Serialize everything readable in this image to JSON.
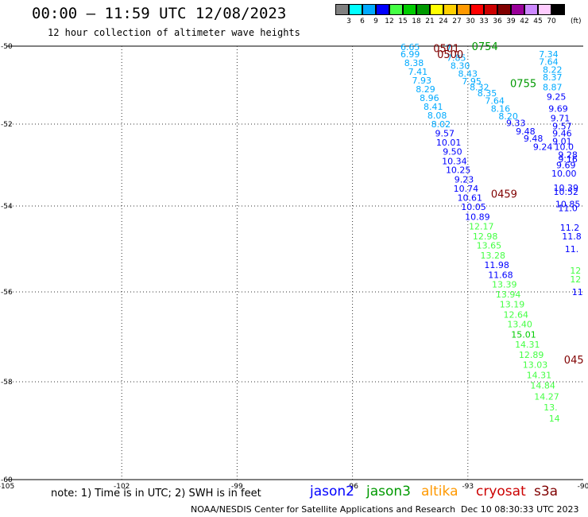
{
  "header": {
    "title": "00:00 – 11:59 UTC 12/08/2023",
    "subtitle": "12 hour collection of altimeter wave heights"
  },
  "colorbar": {
    "labels": [
      "3",
      "6",
      "9",
      "12",
      "15",
      "18",
      "21",
      "24",
      "27",
      "30",
      "33",
      "36",
      "39",
      "42",
      "45",
      "70"
    ],
    "unit": "(ft)",
    "colors": [
      "#808080",
      "#00ffff",
      "#00aaff",
      "#0000ff",
      "#44ff44",
      "#00cc00",
      "#009900",
      "#ffff00",
      "#ffd000",
      "#ff9900",
      "#ff0000",
      "#cc0000",
      "#800000",
      "#990099",
      "#cc88ff",
      "#ffccff",
      "#000000"
    ]
  },
  "map": {
    "lon_min": -105,
    "lon_max": -90,
    "lat_min": -60,
    "lat_max": -50,
    "lon_ticks": [
      -105,
      -102,
      -99,
      -96,
      -93,
      -90
    ],
    "lon_tick_labels": [
      "-105",
      "-102",
      "-99",
      "-96",
      "-93",
      "-90"
    ],
    "lat_ticks": [
      -50,
      -52,
      -54,
      -56,
      -58,
      -60
    ],
    "lat_tick_labels": [
      "-50",
      "-52",
      "-54",
      "-56",
      "-58",
      "-60"
    ]
  },
  "chart_data": {
    "type": "scatter",
    "time_labels": [
      {
        "text": "0501",
        "lon": -93.9,
        "lat": -50.05,
        "color": "#800000"
      },
      {
        "text": "0500",
        "lon": -93.8,
        "lat": -50.2,
        "color": "#800000"
      },
      {
        "text": "0754",
        "lon": -92.9,
        "lat": -50.0,
        "color": "#009900"
      },
      {
        "text": "0755",
        "lon": -91.9,
        "lat": -50.95,
        "color": "#009900"
      },
      {
        "text": "0459",
        "lon": -92.4,
        "lat": -53.7,
        "color": "#800000"
      },
      {
        "text": "045",
        "lon": -90.5,
        "lat": -57.5,
        "color": "#800000"
      }
    ],
    "series": [
      {
        "points": [
          {
            "lon": -94.5,
            "lat": -50.02,
            "value": "6.65",
            "color": "#00aaff"
          },
          {
            "lon": -94.5,
            "lat": -50.2,
            "value": "6.99",
            "color": "#00aaff"
          },
          {
            "lon": -94.4,
            "lat": -50.43,
            "value": "8.38",
            "color": "#00aaff"
          },
          {
            "lon": -94.3,
            "lat": -50.65,
            "value": "7.41",
            "color": "#00aaff"
          },
          {
            "lon": -94.2,
            "lat": -50.88,
            "value": "7.93",
            "color": "#00aaff"
          },
          {
            "lon": -94.1,
            "lat": -51.1,
            "value": "8.29",
            "color": "#00aaff"
          },
          {
            "lon": -94.0,
            "lat": -51.33,
            "value": "8.96",
            "color": "#00aaff"
          },
          {
            "lon": -93.9,
            "lat": -51.55,
            "value": "8.41",
            "color": "#00aaff"
          },
          {
            "lon": -93.8,
            "lat": -51.78,
            "value": "8.08",
            "color": "#00aaff"
          },
          {
            "lon": -93.7,
            "lat": -52.0,
            "value": "8.02",
            "color": "#00aaff"
          },
          {
            "lon": -93.6,
            "lat": -52.22,
            "value": "9.57",
            "color": "#0000ff"
          },
          {
            "lon": -93.5,
            "lat": -52.45,
            "value": "10.01",
            "color": "#0000ff"
          },
          {
            "lon": -93.4,
            "lat": -52.67,
            "value": "9.50",
            "color": "#0000ff"
          },
          {
            "lon": -93.35,
            "lat": -52.9,
            "value": "10.34",
            "color": "#0000ff"
          },
          {
            "lon": -93.25,
            "lat": -53.12,
            "value": "10.25",
            "color": "#0000ff"
          },
          {
            "lon": -93.1,
            "lat": -53.35,
            "value": "9.23",
            "color": "#0000ff"
          },
          {
            "lon": -93.05,
            "lat": -53.57,
            "value": "10.74",
            "color": "#0000ff"
          },
          {
            "lon": -92.95,
            "lat": -53.8,
            "value": "10.61",
            "color": "#0000ff"
          },
          {
            "lon": -92.85,
            "lat": -54.02,
            "value": "10.05",
            "color": "#0000ff"
          },
          {
            "lon": -92.75,
            "lat": -54.25,
            "value": "10.89",
            "color": "#0000ff"
          },
          {
            "lon": -92.65,
            "lat": -54.47,
            "value": "12.17",
            "color": "#44ff44"
          },
          {
            "lon": -92.55,
            "lat": -54.7,
            "value": "12.98",
            "color": "#44ff44"
          },
          {
            "lon": -92.45,
            "lat": -54.92,
            "value": "13.65",
            "color": "#44ff44"
          },
          {
            "lon": -92.35,
            "lat": -55.15,
            "value": "13.28",
            "color": "#44ff44"
          },
          {
            "lon": -92.25,
            "lat": -55.37,
            "value": "11.98",
            "color": "#0000ff"
          },
          {
            "lon": -92.15,
            "lat": -55.6,
            "value": "11.68",
            "color": "#0000ff"
          },
          {
            "lon": -92.05,
            "lat": -55.82,
            "value": "13.39",
            "color": "#44ff44"
          },
          {
            "lon": -91.95,
            "lat": -56.05,
            "value": "13.94",
            "color": "#44ff44"
          },
          {
            "lon": -91.85,
            "lat": -56.27,
            "value": "13.19",
            "color": "#44ff44"
          },
          {
            "lon": -91.75,
            "lat": -56.5,
            "value": "12.64",
            "color": "#44ff44"
          },
          {
            "lon": -91.65,
            "lat": -56.72,
            "value": "13.40",
            "color": "#44ff44"
          },
          {
            "lon": -91.55,
            "lat": -56.95,
            "value": "15.01",
            "color": "#00cc00"
          },
          {
            "lon": -91.45,
            "lat": -57.17,
            "value": "14.31",
            "color": "#44ff44"
          },
          {
            "lon": -91.35,
            "lat": -57.4,
            "value": "12.89",
            "color": "#44ff44"
          },
          {
            "lon": -91.25,
            "lat": -57.62,
            "value": "13.03",
            "color": "#44ff44"
          },
          {
            "lon": -91.15,
            "lat": -57.85,
            "value": "14.31",
            "color": "#44ff44"
          },
          {
            "lon": -91.05,
            "lat": -58.07,
            "value": "14.84",
            "color": "#44ff44"
          },
          {
            "lon": -90.95,
            "lat": -58.3,
            "value": "14.27",
            "color": "#44ff44"
          },
          {
            "lon": -90.85,
            "lat": -58.52,
            "value": "13.",
            "color": "#44ff44"
          },
          {
            "lon": -90.75,
            "lat": -58.75,
            "value": "14",
            "color": "#44ff44"
          }
        ]
      },
      {
        "points": [
          {
            "lon": -93.5,
            "lat": -50.05,
            "value": "7",
            "color": "#00aaff"
          },
          {
            "lon": -93.3,
            "lat": -50.3,
            "value": "7.85",
            "color": "#00aaff"
          },
          {
            "lon": -93.2,
            "lat": -50.5,
            "value": "8.30",
            "color": "#00aaff"
          },
          {
            "lon": -93.0,
            "lat": -50.7,
            "value": "8.43",
            "color": "#00aaff"
          },
          {
            "lon": -92.9,
            "lat": -50.9,
            "value": "7.95",
            "color": "#00aaff"
          },
          {
            "lon": -92.7,
            "lat": -51.05,
            "value": "8.32",
            "color": "#00aaff"
          },
          {
            "lon": -92.5,
            "lat": -51.2,
            "value": "8.35",
            "color": "#00aaff"
          },
          {
            "lon": -92.3,
            "lat": -51.4,
            "value": "7.64",
            "color": "#00aaff"
          },
          {
            "lon": -92.15,
            "lat": -51.6,
            "value": "8.16",
            "color": "#00aaff"
          },
          {
            "lon": -91.95,
            "lat": -51.8,
            "value": "8.20",
            "color": "#00aaff"
          },
          {
            "lon": -91.75,
            "lat": -51.97,
            "value": "9.33",
            "color": "#0000ff"
          },
          {
            "lon": -91.5,
            "lat": -52.17,
            "value": "9.48",
            "color": "#0000ff"
          },
          {
            "lon": -91.3,
            "lat": -52.35,
            "value": "9.48",
            "color": "#0000ff"
          },
          {
            "lon": -91.05,
            "lat": -52.55,
            "value": "9.24",
            "color": "#0000ff"
          }
        ]
      },
      {
        "points": [
          {
            "lon": -90.9,
            "lat": -50.2,
            "value": "7.34",
            "color": "#00aaff"
          },
          {
            "lon": -90.9,
            "lat": -50.4,
            "value": "7.64",
            "color": "#00aaff"
          },
          {
            "lon": -90.8,
            "lat": -50.6,
            "value": "8.22",
            "color": "#00aaff"
          },
          {
            "lon": -90.8,
            "lat": -50.8,
            "value": "8.37",
            "color": "#00aaff"
          },
          {
            "lon": -90.8,
            "lat": -51.05,
            "value": "8.87",
            "color": "#00aaff"
          },
          {
            "lon": -90.7,
            "lat": -51.3,
            "value": "9.25",
            "color": "#0000ff"
          },
          {
            "lon": -90.65,
            "lat": -51.6,
            "value": "9.69",
            "color": "#0000ff"
          },
          {
            "lon": -90.6,
            "lat": -51.85,
            "value": "9.71",
            "color": "#0000ff"
          },
          {
            "lon": -90.55,
            "lat": -52.05,
            "value": "9.57",
            "color": "#0000ff"
          },
          {
            "lon": -90.55,
            "lat": -52.22,
            "value": "9.46",
            "color": "#0000ff"
          },
          {
            "lon": -90.55,
            "lat": -52.42,
            "value": "9.01",
            "color": "#0000ff"
          },
          {
            "lon": -90.5,
            "lat": -52.55,
            "value": "10.0",
            "color": "#0000ff"
          },
          {
            "lon": -90.4,
            "lat": -52.75,
            "value": "9.28",
            "color": "#0000ff"
          },
          {
            "lon": -90.4,
            "lat": -52.85,
            "value": "9.16",
            "color": "#0000ff"
          },
          {
            "lon": -90.45,
            "lat": -53.0,
            "value": "9.69",
            "color": "#0000ff"
          },
          {
            "lon": -90.5,
            "lat": -53.2,
            "value": "10.00",
            "color": "#0000ff"
          },
          {
            "lon": -90.45,
            "lat": -53.55,
            "value": "10.39",
            "color": "#0000ff"
          },
          {
            "lon": -90.45,
            "lat": -53.65,
            "value": "10.52",
            "color": "#0000ff"
          },
          {
            "lon": -90.4,
            "lat": -53.95,
            "value": "10.85",
            "color": "#0000ff"
          },
          {
            "lon": -90.4,
            "lat": -54.05,
            "value": "11.0",
            "color": "#0000ff"
          },
          {
            "lon": -90.35,
            "lat": -54.5,
            "value": "11.2",
            "color": "#0000ff"
          },
          {
            "lon": -90.3,
            "lat": -54.7,
            "value": "11.8",
            "color": "#0000ff"
          },
          {
            "lon": -90.3,
            "lat": -55.0,
            "value": "11.",
            "color": "#0000ff"
          },
          {
            "lon": -90.2,
            "lat": -55.5,
            "value": "12",
            "color": "#44ff44"
          },
          {
            "lon": -90.2,
            "lat": -55.7,
            "value": "12",
            "color": "#44ff44"
          },
          {
            "lon": -90.15,
            "lat": -56.0,
            "value": "11",
            "color": "#0000ff"
          }
        ]
      }
    ]
  },
  "footer": {
    "note": "note: 1) Time is in UTC; 2) SWH is in feet",
    "legend": [
      {
        "name": "jason2",
        "color": "#0000ff"
      },
      {
        "name": "jason3",
        "color": "#009900"
      },
      {
        "name": "altika",
        "color": "#ff9900"
      },
      {
        "name": "cryosat",
        "color": "#cc0000"
      },
      {
        "name": "s3a",
        "color": "#800000"
      }
    ],
    "credit": "NOAA/NESDIS Center for Satellite Applications and Research",
    "timestamp": "Dec 10 08:30:33 UTC 2023"
  }
}
